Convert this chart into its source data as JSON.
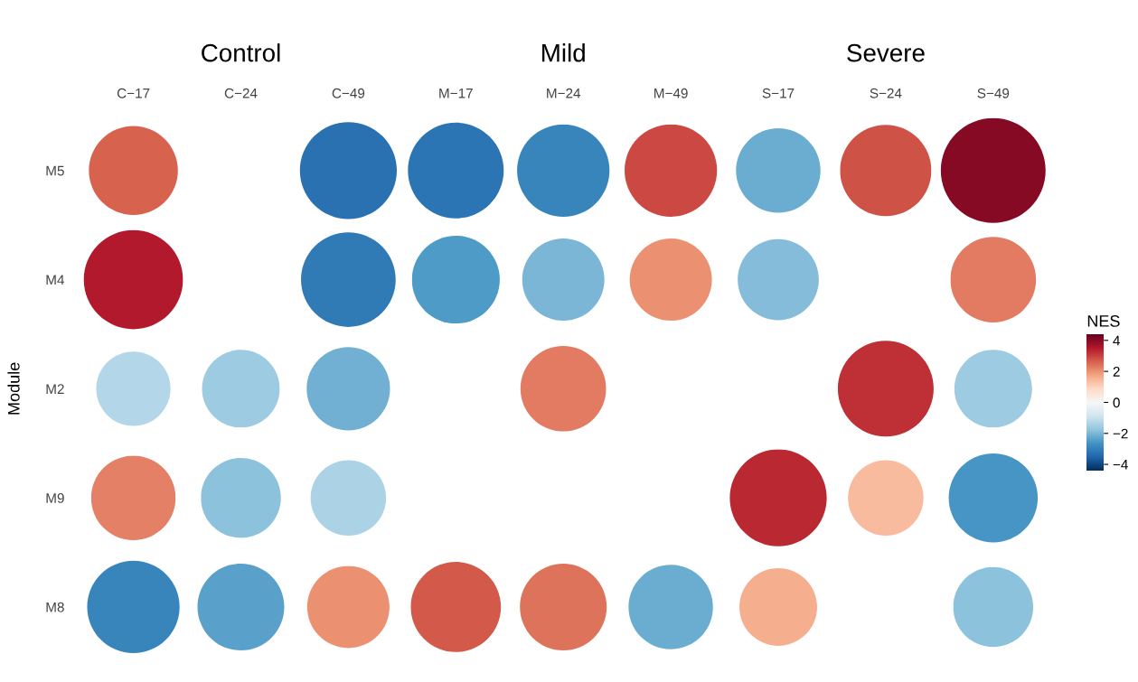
{
  "chart_data": {
    "type": "heatmap",
    "ylabel": "Module",
    "clabel": "NES",
    "annotations": [
      "Control",
      "Mild",
      "Severe"
    ],
    "categories": [
      "C−17",
      "C−24",
      "C−49",
      "M−17",
      "M−24",
      "M−49",
      "S−17",
      "S−24",
      "S−49"
    ],
    "y_categories": [
      "M5",
      "M4",
      "M2",
      "M9",
      "M8"
    ],
    "cells": [
      [
        2.6,
        null,
        -3.3,
        -3.2,
        -2.9,
        2.9,
        -2.2,
        2.8,
        4.0
      ],
      [
        3.5,
        null,
        -3.1,
        -2.5,
        -2.0,
        2.0,
        -1.9,
        null,
        2.3
      ],
      [
        -1.3,
        -1.6,
        -2.1,
        null,
        2.3,
        null,
        null,
        3.2,
        -1.6
      ],
      [
        2.2,
        -1.8,
        -1.4,
        null,
        null,
        null,
        3.3,
        1.4,
        -2.6
      ],
      [
        -2.9,
        -2.4,
        2.0,
        2.7,
        2.4,
        -2.2,
        1.6,
        null,
        -1.8
      ]
    ],
    "clim": [
      -4.4,
      4.4
    ],
    "cticks": [
      4,
      2,
      0,
      {
        "value": -2,
        "label": "−2"
      },
      {
        "value": -4,
        "label": "−4"
      }
    ],
    "grid": false
  }
}
